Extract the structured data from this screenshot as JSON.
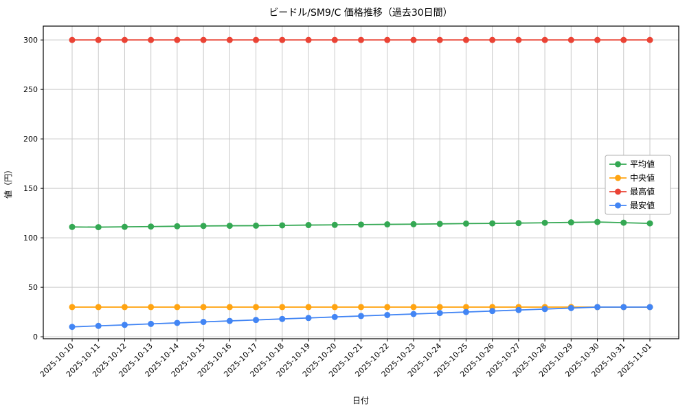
{
  "chart_data": {
    "type": "line",
    "title": "ビードル/SM9/C 価格推移（過去30日間）",
    "xlabel": "日付",
    "ylabel": "値（円）",
    "grid": true,
    "legend_position": "center right",
    "ylim": [
      -2,
      314
    ],
    "yticks": [
      0,
      50,
      100,
      150,
      200,
      250,
      300
    ],
    "x": [
      "2025-10-10",
      "2025-10-11",
      "2025-10-12",
      "2025-10-13",
      "2025-10-14",
      "2025-10-15",
      "2025-10-16",
      "2025-10-17",
      "2025-10-18",
      "2025-10-19",
      "2025-10-20",
      "2025-10-21",
      "2025-10-22",
      "2025-10-23",
      "2025-10-24",
      "2025-10-25",
      "2025-10-26",
      "2025-10-27",
      "2025-10-28",
      "2025-10-29",
      "2025-10-30",
      "2025-10-31",
      "2025-11-01"
    ],
    "series": [
      {
        "name": "平均値",
        "color": "#34a853",
        "values": [
          111,
          110.8,
          111.1,
          111.4,
          111.7,
          112,
          112.2,
          112.3,
          112.6,
          112.9,
          113.1,
          113.4,
          113.6,
          113.8,
          114.1,
          114.4,
          114.6,
          114.9,
          115.2,
          115.6,
          116,
          115.3,
          114.6
        ]
      },
      {
        "name": "中央値",
        "color": "#ffa412",
        "values": [
          30,
          30,
          30,
          30,
          30,
          30,
          30,
          30,
          30,
          30,
          30,
          30,
          30,
          30,
          30,
          30,
          30,
          30,
          30,
          30,
          30,
          30,
          30
        ]
      },
      {
        "name": "最高値",
        "color": "#ea4335",
        "values": [
          300,
          300,
          300,
          300,
          300,
          300,
          300,
          300,
          300,
          300,
          300,
          300,
          300,
          300,
          300,
          300,
          300,
          300,
          300,
          300,
          300,
          300,
          300
        ]
      },
      {
        "name": "最安値",
        "color": "#4285f4",
        "values": [
          10,
          11,
          12,
          13,
          14,
          15,
          16,
          17,
          18,
          19,
          20,
          21,
          22,
          23,
          24,
          25,
          26,
          27,
          28,
          29,
          30,
          30,
          30
        ]
      }
    ]
  }
}
